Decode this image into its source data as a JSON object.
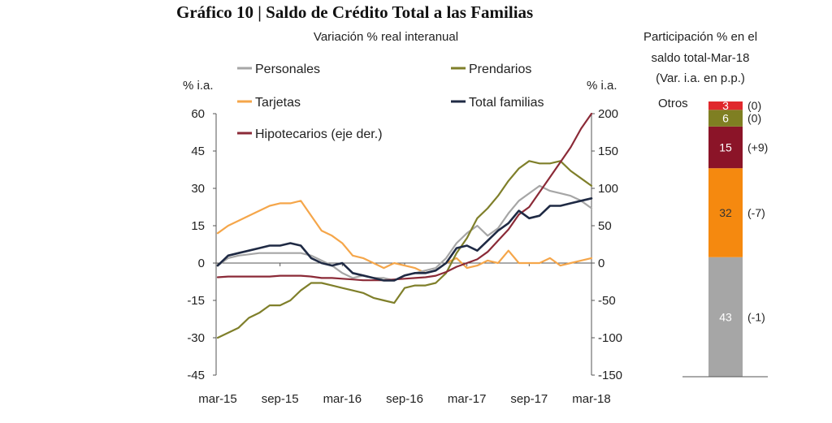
{
  "header": {
    "title": "Gráfico 10 | Saldo de Crédito Total a las Familias",
    "subtitle": "Variación % real interanual"
  },
  "chart_data": [
    {
      "type": "line",
      "left_axis_unit": "% i.a.",
      "right_axis_unit": "% i.a.",
      "ylim_left": [
        -45,
        60
      ],
      "yticks_left": [
        "60",
        "45",
        "30",
        "15",
        "0",
        "-15",
        "-30",
        "-45"
      ],
      "ylim_right": [
        -150,
        200
      ],
      "yticks_right": [
        "200",
        "150",
        "100",
        "50",
        "0",
        "-50",
        "-100",
        "-150"
      ],
      "x_tick_labels": [
        "mar-15",
        "sep-15",
        "mar-16",
        "sep-16",
        "mar-17",
        "sep-17",
        "mar-18"
      ],
      "x": [
        "mar-15",
        "abr-15",
        "may-15",
        "jun-15",
        "jul-15",
        "ago-15",
        "sep-15",
        "oct-15",
        "nov-15",
        "dic-15",
        "ene-16",
        "feb-16",
        "mar-16",
        "abr-16",
        "may-16",
        "jun-16",
        "jul-16",
        "ago-16",
        "sep-16",
        "oct-16",
        "nov-16",
        "dic-16",
        "ene-17",
        "feb-17",
        "mar-17",
        "abr-17",
        "may-17",
        "jun-17",
        "jul-17",
        "ago-17",
        "sep-17",
        "oct-17",
        "nov-17",
        "dic-17",
        "ene-18",
        "feb-18",
        "mar-18"
      ],
      "legend_placement": "top-left",
      "series": [
        {
          "name": "Personales",
          "color": "#a6a6a6",
          "axis": "left",
          "values": [
            -1,
            2,
            3,
            3.5,
            4,
            4,
            4,
            4,
            4,
            3,
            1,
            -1,
            -4,
            -6,
            -5,
            -6,
            -6,
            -7,
            -5,
            -4,
            -3,
            -2,
            2,
            8,
            12,
            15,
            11,
            14,
            20,
            25,
            28,
            31,
            29,
            28,
            27,
            25,
            22
          ]
        },
        {
          "name": "Prendarios",
          "color": "#7f7f2a",
          "axis": "left",
          "values": [
            -30,
            -28,
            -26,
            -22,
            -20,
            -17,
            -17,
            -15,
            -11,
            -8,
            -8,
            -9,
            -10,
            -11,
            -12,
            -14,
            -15,
            -16,
            -10,
            -9,
            -9,
            -8,
            -4,
            4,
            10,
            18,
            22,
            27,
            33,
            38,
            41,
            40,
            40,
            41,
            37,
            34,
            31
          ]
        },
        {
          "name": "Tarjetas",
          "color": "#f5a64a",
          "axis": "left",
          "values": [
            12,
            15,
            17,
            19,
            21,
            23,
            24,
            24,
            25,
            19,
            13,
            11,
            8,
            3,
            2,
            0,
            -2,
            0,
            -1,
            -2,
            -4,
            -3,
            0,
            2,
            -2,
            -1,
            1,
            0,
            5,
            0,
            0,
            0,
            2,
            -1,
            0,
            1,
            2
          ]
        },
        {
          "name": "Total familias",
          "color": "#1f2a44",
          "axis": "left",
          "values": [
            -1,
            3,
            4,
            5,
            6,
            7,
            7,
            8,
            7,
            2,
            0,
            -1,
            0,
            -4,
            -5,
            -6,
            -7,
            -7,
            -5,
            -4,
            -4,
            -3,
            0,
            6,
            7,
            5,
            9,
            13,
            16,
            21,
            18,
            19,
            23,
            23,
            24,
            25,
            26
          ]
        },
        {
          "name": "Hipotecarios (eje der.)",
          "color": "#8b2a37",
          "axis": "right",
          "values": [
            -19,
            -18,
            -18,
            -18,
            -18,
            -18,
            -17,
            -17,
            -17,
            -18,
            -20,
            -20,
            -21,
            -22,
            -23,
            -23,
            -23,
            -22,
            -21,
            -20,
            -19,
            -17,
            -12,
            -5,
            0,
            5,
            15,
            30,
            45,
            65,
            75,
            95,
            115,
            135,
            155,
            180,
            200
          ]
        }
      ]
    },
    {
      "type": "stacked-bar",
      "title_lines": [
        "Participación % en el",
        "saldo total-Mar-18",
        "(Var. i.a. en p.p.)"
      ],
      "category_label": "Otros",
      "segments": [
        {
          "name": "Personales",
          "value": 43,
          "label": "43",
          "delta": "(-1)",
          "color": "#a6a6a6"
        },
        {
          "name": "Tarjetas",
          "value": 32,
          "label": "32",
          "delta": "(-7)",
          "color": "#f5890f"
        },
        {
          "name": "Hipotecarios",
          "value": 15,
          "label": "15",
          "delta": "(+9)",
          "color": "#8b1428"
        },
        {
          "name": "Prendarios",
          "value": 6,
          "label": "6",
          "delta": "(0)",
          "color": "#7f7f22"
        },
        {
          "name": "Otros",
          "value": 3,
          "label": "3",
          "delta": "(0)",
          "color": "#e0282c"
        }
      ]
    }
  ]
}
